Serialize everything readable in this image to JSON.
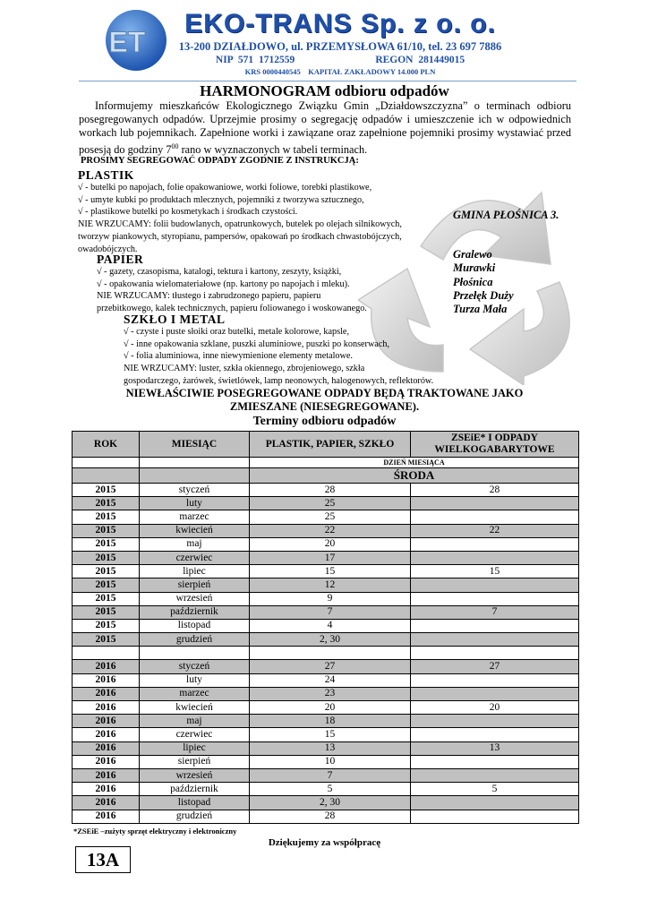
{
  "header": {
    "logo_text": "ET",
    "company": "EKO-TRANS Sp. z o. o.",
    "address": "13-200 DZIAŁDOWO,  ul. PRZEMYSŁOWA  61/10,  tel. 23 697 7886",
    "nip": "NIP  571 1712559",
    "regon": "REGON  281449015",
    "krs": "KRS  0000440545",
    "capital": "KAPITAŁ ZAKŁADOWY 14.000 PLN"
  },
  "title": "HARMONOGRAM  odbioru  odpadów",
  "intro": "Informujemy mieszkańców Ekologicznego Związku Gmin „Działdowszczyzna” o terminach odbioru posegregowanych odpadów.  Uprzejmie prosimy o segregację odpadów i umieszczenie ich w odpowiednich workach lub pojemnikach.  Zapełnione worki i zawiązane oraz zapełnione pojemniki prosimy wystawiać przed posesją do godziny 7",
  "intro_sup": "00",
  "intro_end": " rano w wyznaczonych w tabeli terminach.",
  "prosimy": "PROSIMY SEGREGOWAĆ ODPADY ZGODNIE Z INSTRUKCJĄ:",
  "sections": [
    {
      "title": "PLASTIK",
      "lines": [
        "√ - butelki po napojach, folie opakowaniowe, worki foliowe, torebki plastikowe,",
        "√ - umyte kubki po produktach mlecznych,  pojemniki z tworzywa sztucznego,",
        "√ - plastikowe butelki po kosmetykach i środkach czystości.",
        "NIE WRZUCAMY: folii budowlanych, opatrunkowych, butelek po olejach silnikowych,",
        "tworzyw piankowych, styropianu, pampersów, opakowań po środkach chwastobójczych,",
        "owadobójczych."
      ]
    },
    {
      "title": "PAPIER",
      "lines": [
        "√ - gazety, czasopisma, katalogi, tektura i kartony, zeszyty, książki,",
        "√ - opakowania wielomateriałowe (np. kartony po napojach i mleku).",
        "NIE WRZUCAMY: tłustego i zabrudzonego papieru, papieru",
        "przebitkowego, kalek technicznych, papieru foliowanego i woskowanego."
      ]
    },
    {
      "title": "SZKŁO I METAL",
      "lines": [
        "√ - czyste i puste słoiki oraz butelki, metale kolorowe, kapsle,",
        "√ - inne opakowania szklane, puszki aluminiowe,  puszki po konserwach,",
        "√ - folia aluminiowa, inne niewymienione elementy metalowe.",
        "NIE WRZUCAMY: luster, szkła okiennego, zbrojeniowego, szkła",
        "gospodarczego, żarówek, świetlówek, lamp neonowych, halogenowych, reflektorów."
      ]
    }
  ],
  "gmina": "GMINA PŁOŚNICA 3.",
  "villages": [
    "Gralewo",
    "Murawki",
    "Płośnica",
    "Przełęk Duży",
    "Turza Mała"
  ],
  "warning": [
    "NIEWŁAŚCIWIE POSEGREGOWANE ODPADY BĘDĄ TRAKTOWANE JAKO",
    "ZMIESZANE (NIESEGREGOWANE)."
  ],
  "table": {
    "caption": "Terminy odbioru odpadów",
    "headers": [
      "ROK",
      "MIESIĄC",
      "PLASTIK, PAPIER, SZKŁO",
      "ZSEiE* I ODPADY WIELKOGABARYTOWE"
    ],
    "subheader": "DZIEŃ MIESIĄCA",
    "weekday": "ŚRODA",
    "rows": [
      [
        "2015",
        "styczeń",
        "28",
        "28"
      ],
      [
        "2015",
        "luty",
        "25",
        ""
      ],
      [
        "2015",
        "marzec",
        "25",
        ""
      ],
      [
        "2015",
        "kwiecień",
        "22",
        "22"
      ],
      [
        "2015",
        "maj",
        "20",
        ""
      ],
      [
        "2015",
        "czerwiec",
        "17",
        ""
      ],
      [
        "2015",
        "lipiec",
        "15",
        "15"
      ],
      [
        "2015",
        "sierpień",
        "12",
        ""
      ],
      [
        "2015",
        "wrzesień",
        "9",
        ""
      ],
      [
        "2015",
        "październik",
        "7",
        "7"
      ],
      [
        "2015",
        "listopad",
        "4",
        ""
      ],
      [
        "2015",
        "grudzień",
        "2, 30",
        ""
      ],
      [
        "",
        "",
        "",
        ""
      ],
      [
        "2016",
        "styczeń",
        "27",
        "27"
      ],
      [
        "2016",
        "luty",
        "24",
        ""
      ],
      [
        "2016",
        "marzec",
        "23",
        ""
      ],
      [
        "2016",
        "kwiecień",
        "20",
        "20"
      ],
      [
        "2016",
        "maj",
        "18",
        ""
      ],
      [
        "2016",
        "czerwiec",
        "15",
        ""
      ],
      [
        "2016",
        "lipiec",
        "13",
        "13"
      ],
      [
        "2016",
        "sierpień",
        "10",
        ""
      ],
      [
        "2016",
        "wrzesień",
        "7",
        ""
      ],
      [
        "2016",
        "październik",
        "5",
        "5"
      ],
      [
        "2016",
        "listopad",
        "2, 30",
        ""
      ],
      [
        "2016",
        "grudzień",
        "28",
        ""
      ]
    ]
  },
  "footnote": "*ZSEiE –zużyty sprzęt elektryczny i elektroniczny",
  "thanks": "Dziękujemy za współpracę",
  "code": "13A",
  "colors": {
    "brand": "#1f4fa8",
    "row_shade": "#c0c0c0"
  }
}
